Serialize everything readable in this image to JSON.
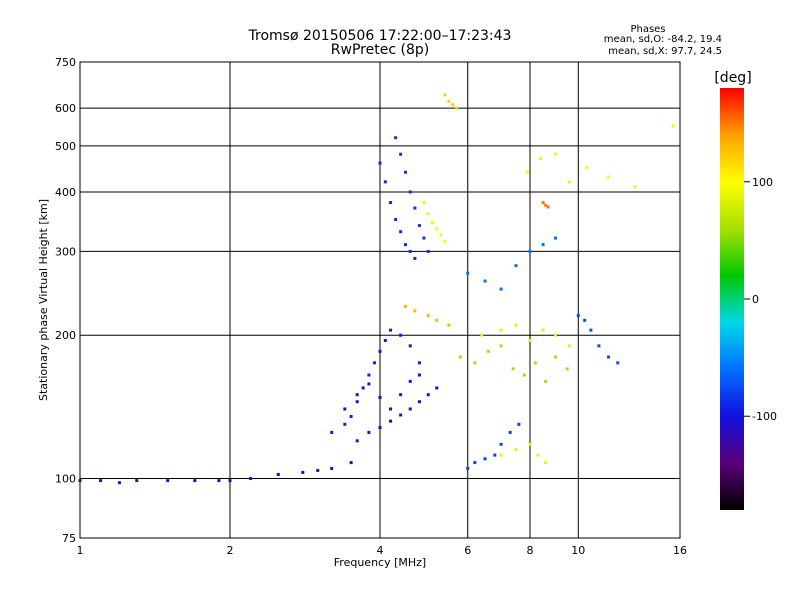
{
  "chart_data": {
    "type": "scatter",
    "title": "Tromsø 20150506 17:22:00–17:23:43",
    "subtitle": "RwPretec (8p)",
    "xlabel": "Frequency [MHz]",
    "ylabel": "Stationary phase Virtual Height [km]",
    "x_scale": "log",
    "y_scale": "log",
    "xlim": [
      1,
      16
    ],
    "ylim": [
      75,
      750
    ],
    "x_ticks": [
      {
        "value": 1,
        "label": "1"
      },
      {
        "value": 2,
        "label": "2"
      },
      {
        "value": 4,
        "label": "4"
      },
      {
        "value": 6,
        "label": "6"
      },
      {
        "value": 8,
        "label": "8"
      },
      {
        "value": 10,
        "label": "10"
      },
      {
        "value": 16,
        "label": "16"
      }
    ],
    "y_ticks": [
      {
        "value": 75,
        "label": "75"
      },
      {
        "value": 100,
        "label": "100"
      },
      {
        "value": 200,
        "label": "200"
      },
      {
        "value": 300,
        "label": "300"
      },
      {
        "value": 400,
        "label": "400"
      },
      {
        "value": 500,
        "label": "500"
      },
      {
        "value": 600,
        "label": "600"
      },
      {
        "value": 750,
        "label": "750"
      }
    ],
    "grid_x": [
      1,
      2,
      4,
      6,
      8,
      10,
      16
    ],
    "grid_y": [
      100,
      200,
      300,
      400,
      500,
      600
    ],
    "grid": true,
    "phase_stats": {
      "heading": "Phases",
      "line_o": "mean, sd,O: -84.2, 19.4",
      "line_x": "mean, sd,X:  97.7, 24.5"
    },
    "colorbar": {
      "label": "[deg]",
      "range": [
        -180,
        180
      ],
      "ticks": [
        {
          "value": 100,
          "label": "100"
        },
        {
          "value": 0,
          "label": "0"
        },
        {
          "value": -100,
          "label": "-100"
        }
      ],
      "colormap": "rainbow",
      "stops": [
        "#000000",
        "#5a007a",
        "#1010e0",
        "#0070ff",
        "#00d8e8",
        "#00c800",
        "#a8e000",
        "#ffff00",
        "#ffa000",
        "#ff0000"
      ]
    },
    "series": [
      {
        "phase": -110,
        "points": [
          [
            1.0,
            99
          ],
          [
            1.1,
            99
          ],
          [
            1.2,
            98
          ],
          [
            1.3,
            99
          ],
          [
            1.5,
            99
          ],
          [
            1.7,
            99
          ],
          [
            1.9,
            99
          ],
          [
            2.0,
            99
          ],
          [
            2.2,
            100
          ],
          [
            2.5,
            102
          ],
          [
            2.8,
            103
          ],
          [
            3.0,
            104
          ],
          [
            3.2,
            105
          ],
          [
            3.5,
            108
          ]
        ]
      },
      {
        "phase": -95,
        "points": [
          [
            3.4,
            130
          ],
          [
            3.5,
            135
          ],
          [
            3.6,
            145
          ],
          [
            3.7,
            155
          ],
          [
            3.8,
            165
          ],
          [
            3.9,
            175
          ],
          [
            4.0,
            185
          ],
          [
            4.1,
            195
          ],
          [
            4.2,
            205
          ],
          [
            4.4,
            200
          ],
          [
            4.6,
            190
          ],
          [
            4.8,
            175
          ]
        ]
      },
      {
        "phase": -100,
        "points": [
          [
            3.2,
            125
          ],
          [
            3.4,
            140
          ],
          [
            3.6,
            150
          ],
          [
            3.8,
            158
          ],
          [
            4.0,
            148
          ],
          [
            4.2,
            140
          ],
          [
            4.4,
            150
          ],
          [
            4.6,
            160
          ],
          [
            4.8,
            165
          ]
        ]
      },
      {
        "phase": -105,
        "points": [
          [
            3.6,
            120
          ],
          [
            3.8,
            125
          ],
          [
            4.0,
            128
          ],
          [
            4.2,
            132
          ],
          [
            4.4,
            136
          ],
          [
            4.6,
            140
          ],
          [
            4.8,
            145
          ],
          [
            5.0,
            150
          ],
          [
            5.2,
            155
          ]
        ]
      },
      {
        "phase": -90,
        "points": [
          [
            4.0,
            460
          ],
          [
            4.1,
            420
          ],
          [
            4.2,
            380
          ],
          [
            4.3,
            350
          ],
          [
            4.4,
            330
          ],
          [
            4.5,
            310
          ],
          [
            4.6,
            300
          ],
          [
            4.7,
            290
          ]
        ]
      },
      {
        "phase": -85,
        "points": [
          [
            4.3,
            520
          ],
          [
            4.4,
            480
          ],
          [
            4.5,
            440
          ],
          [
            4.6,
            400
          ],
          [
            4.7,
            370
          ],
          [
            4.8,
            340
          ],
          [
            4.9,
            320
          ],
          [
            5.0,
            300
          ]
        ]
      },
      {
        "phase": 95,
        "points": [
          [
            4.9,
            380
          ],
          [
            5.0,
            360
          ],
          [
            5.1,
            345
          ],
          [
            5.2,
            335
          ],
          [
            5.3,
            325
          ],
          [
            5.4,
            315
          ]
        ]
      },
      {
        "phase": 120,
        "points": [
          [
            5.4,
            640
          ],
          [
            5.5,
            620
          ],
          [
            5.6,
            610
          ],
          [
            5.7,
            600
          ]
        ]
      },
      {
        "phase": 130,
        "points": [
          [
            4.5,
            230
          ],
          [
            4.7,
            225
          ],
          [
            5.0,
            220
          ],
          [
            5.2,
            215
          ],
          [
            5.5,
            210
          ]
        ]
      },
      {
        "phase": 90,
        "points": [
          [
            6.5,
            110
          ],
          [
            7.0,
            112
          ],
          [
            7.5,
            115
          ],
          [
            8.0,
            118
          ],
          [
            8.3,
            112
          ],
          [
            8.6,
            108
          ]
        ]
      },
      {
        "phase": -80,
        "points": [
          [
            6.0,
            105
          ],
          [
            6.2,
            108
          ],
          [
            6.5,
            110
          ],
          [
            6.8,
            112
          ],
          [
            7.0,
            118
          ],
          [
            7.3,
            125
          ],
          [
            7.6,
            130
          ]
        ]
      },
      {
        "phase": 60,
        "points": [
          [
            5.8,
            180
          ],
          [
            6.2,
            175
          ],
          [
            6.6,
            185
          ],
          [
            7.0,
            190
          ],
          [
            7.4,
            170
          ],
          [
            7.8,
            165
          ],
          [
            8.2,
            175
          ],
          [
            8.6,
            160
          ],
          [
            9.0,
            180
          ],
          [
            9.5,
            170
          ]
        ]
      },
      {
        "phase": 110,
        "points": [
          [
            6.4,
            200
          ],
          [
            7.0,
            205
          ],
          [
            7.5,
            210
          ],
          [
            8.0,
            195
          ],
          [
            8.5,
            205
          ],
          [
            9.0,
            200
          ],
          [
            9.6,
            190
          ]
        ]
      },
      {
        "phase": -75,
        "points": [
          [
            10.0,
            220
          ],
          [
            10.3,
            215
          ],
          [
            10.6,
            205
          ],
          [
            11.0,
            190
          ],
          [
            11.5,
            180
          ],
          [
            12.0,
            175
          ]
        ]
      },
      {
        "phase": 150,
        "points": [
          [
            8.5,
            380
          ],
          [
            8.6,
            375
          ],
          [
            8.7,
            372
          ]
        ]
      },
      {
        "phase": 105,
        "points": [
          [
            7.9,
            440
          ],
          [
            8.4,
            470
          ],
          [
            9.0,
            480
          ],
          [
            9.6,
            420
          ],
          [
            10.4,
            450
          ],
          [
            11.5,
            430
          ],
          [
            13.0,
            410
          ],
          [
            15.5,
            550
          ]
        ]
      },
      {
        "phase": -60,
        "points": [
          [
            6.0,
            270
          ],
          [
            6.5,
            260
          ],
          [
            7.0,
            250
          ],
          [
            7.5,
            280
          ],
          [
            8.0,
            300
          ],
          [
            8.5,
            310
          ],
          [
            9.0,
            320
          ]
        ]
      }
    ]
  }
}
